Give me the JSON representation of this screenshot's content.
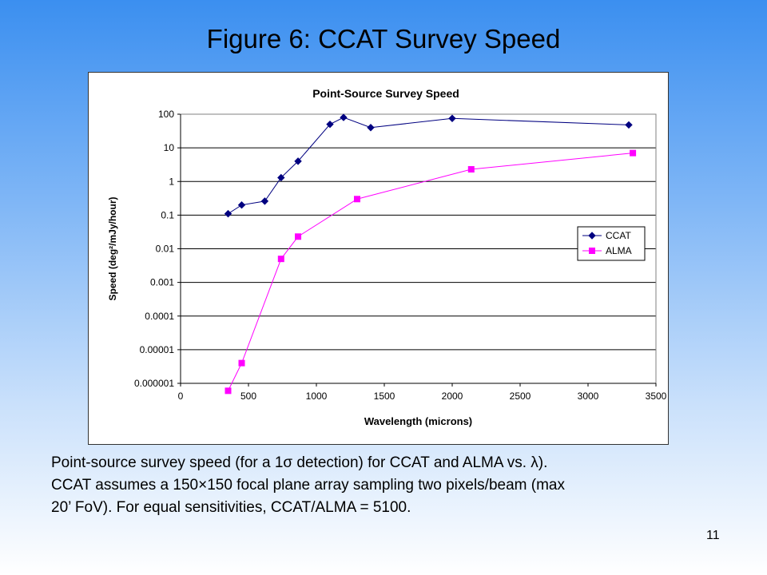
{
  "slide": {
    "title": "Figure 6: CCAT Survey Speed",
    "caption_lines": [
      "Point-source survey speed (for a 1σ detection) for CCAT and ALMA vs. λ).",
      "CCAT assumes a 150×150 focal plane array sampling two pixels/beam (max",
      "20’ FoV).   For equal sensitivities, CCAT/ALMA = 5100."
    ],
    "page_number": "11"
  },
  "chart_data": {
    "type": "scatter",
    "title": "Point-Source Survey Speed",
    "xlabel": "Wavelength (microns)",
    "ylabel": "Speed (deg²/mJy/hour)",
    "xlim": [
      0,
      3500
    ],
    "ylim": [
      1e-06,
      100
    ],
    "y_scale": "log",
    "grid": "horizontal",
    "legend_position": "right",
    "x_ticks": [
      "0",
      "500",
      "1000",
      "1500",
      "2000",
      "2500",
      "3000",
      "3500"
    ],
    "y_ticks": [
      "100",
      "10",
      "1",
      "0.1",
      "0.01",
      "0.001",
      "0.0001",
      "0.00001",
      "0.000001"
    ],
    "series": [
      {
        "name": "CCAT",
        "color": "#000080",
        "marker": "diamond",
        "x": [
          350,
          450,
          620,
          740,
          865,
          1100,
          1200,
          1400,
          2000,
          3300
        ],
        "y": [
          0.11,
          0.2,
          0.26,
          1.3,
          4,
          50,
          80,
          40,
          75,
          48
        ]
      },
      {
        "name": "ALMA",
        "color": "#ff00ff",
        "marker": "square",
        "x": [
          350,
          450,
          740,
          865,
          1300,
          2140,
          3330
        ],
        "y": [
          6e-07,
          4e-06,
          0.005,
          0.023,
          0.3,
          2.3,
          7
        ]
      }
    ]
  }
}
